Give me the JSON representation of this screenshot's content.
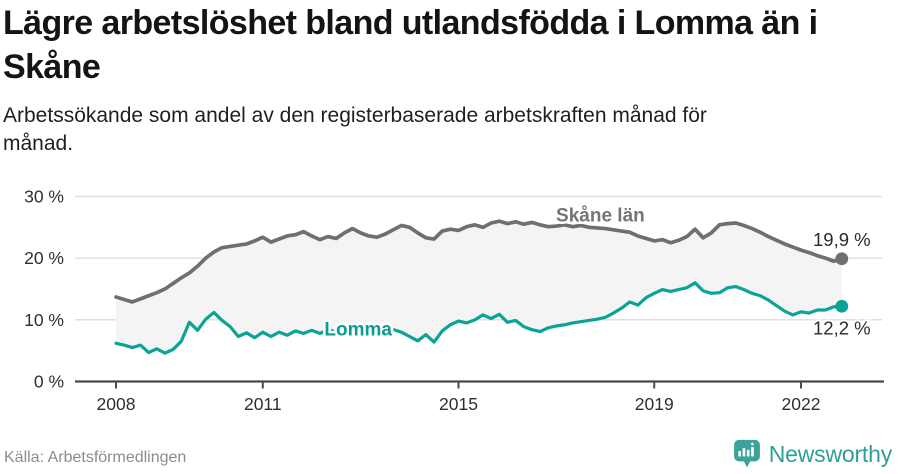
{
  "chart_data": {
    "type": "line",
    "title": "Lägre arbetslöshet bland utlandsfödda i Lomma än i Skåne",
    "subtitle": "Arbetssökande som andel av den registerbaserade arbetskraften månad för månad.",
    "x_start": 2008.0,
    "x_step": 0.16667,
    "xlim": [
      2008,
      2022.84
    ],
    "ylim": [
      0,
      30
    ],
    "x_ticks": [
      2008,
      2011,
      2015,
      2019,
      2022
    ],
    "y_ticks": [
      0,
      10,
      20,
      30
    ],
    "y_tick_suffix": " %",
    "grid": true,
    "legend_position": "inline-labels",
    "colors": {
      "grid": "#dcdcdc",
      "axis": "#4a4a4a",
      "tick_label": "#2f2f2f",
      "end_label": "#2b2b2b",
      "fill_between": "#f4f4f4"
    },
    "series": [
      {
        "name": "Skåne län",
        "color": "#6f6f6f",
        "label_color": "#757575",
        "end_label": "19,9 %",
        "end_value": 19.9,
        "end_label_side": "above",
        "label_at": {
          "x": 2017.9,
          "y": 27.0
        },
        "values": [
          13.7,
          13.3,
          12.9,
          13.4,
          13.9,
          14.4,
          15.0,
          15.9,
          16.8,
          17.6,
          18.7,
          20.0,
          21.0,
          21.7,
          21.9,
          22.1,
          22.3,
          22.8,
          23.4,
          22.6,
          23.1,
          23.6,
          23.8,
          24.3,
          23.6,
          23.0,
          23.5,
          23.2,
          24.1,
          24.8,
          24.1,
          23.6,
          23.4,
          23.9,
          24.6,
          25.3,
          25.0,
          24.1,
          23.3,
          23.1,
          24.4,
          24.7,
          24.5,
          25.1,
          25.4,
          25.0,
          25.7,
          26.0,
          25.6,
          25.9,
          25.5,
          25.8,
          25.4,
          25.1,
          25.2,
          25.4,
          25.1,
          25.3,
          25.0,
          24.9,
          24.8,
          24.6,
          24.4,
          24.2,
          23.6,
          23.2,
          22.8,
          23.0,
          22.5,
          22.9,
          23.5,
          24.7,
          23.3,
          24.1,
          25.4,
          25.6,
          25.7,
          25.3,
          24.8,
          24.2,
          23.5,
          22.9,
          22.3,
          21.8,
          21.3,
          20.9,
          20.4,
          20.0,
          19.5,
          19.9
        ]
      },
      {
        "name": "Lomma",
        "color": "#0aa396",
        "label_color": "#0a9e92",
        "end_label": "12,2 %",
        "end_value": 12.2,
        "end_label_side": "below",
        "label_at": {
          "x": 2012.95,
          "y": 8.55
        },
        "values": [
          6.2,
          5.9,
          5.5,
          5.9,
          4.7,
          5.3,
          4.6,
          5.2,
          6.5,
          9.6,
          8.3,
          10.1,
          11.2,
          9.9,
          8.9,
          7.3,
          7.9,
          7.1,
          8.0,
          7.3,
          8.0,
          7.5,
          8.2,
          7.8,
          8.3,
          7.8,
          8.4,
          8.0,
          8.5,
          8.2,
          8.4,
          8.0,
          8.6,
          8.2,
          8.4,
          8.0,
          7.3,
          6.6,
          7.6,
          6.4,
          8.2,
          9.2,
          9.8,
          9.5,
          10.0,
          10.8,
          10.2,
          10.9,
          9.6,
          9.9,
          8.9,
          8.4,
          8.1,
          8.7,
          9.0,
          9.2,
          9.5,
          9.7,
          9.9,
          10.1,
          10.4,
          11.1,
          11.9,
          12.9,
          12.4,
          13.6,
          14.3,
          14.9,
          14.6,
          14.9,
          15.2,
          16.0,
          14.7,
          14.3,
          14.4,
          15.2,
          15.4,
          14.9,
          14.3,
          13.9,
          13.2,
          12.3,
          11.4,
          10.8,
          11.3,
          11.1,
          11.6,
          11.6,
          12.1,
          12.2
        ]
      }
    ]
  },
  "footer": {
    "source": "Källa: Arbetsförmedlingen",
    "brand": "Newsworthy",
    "brand_color": "#2f9e99",
    "icon_color": "#3da29b"
  }
}
